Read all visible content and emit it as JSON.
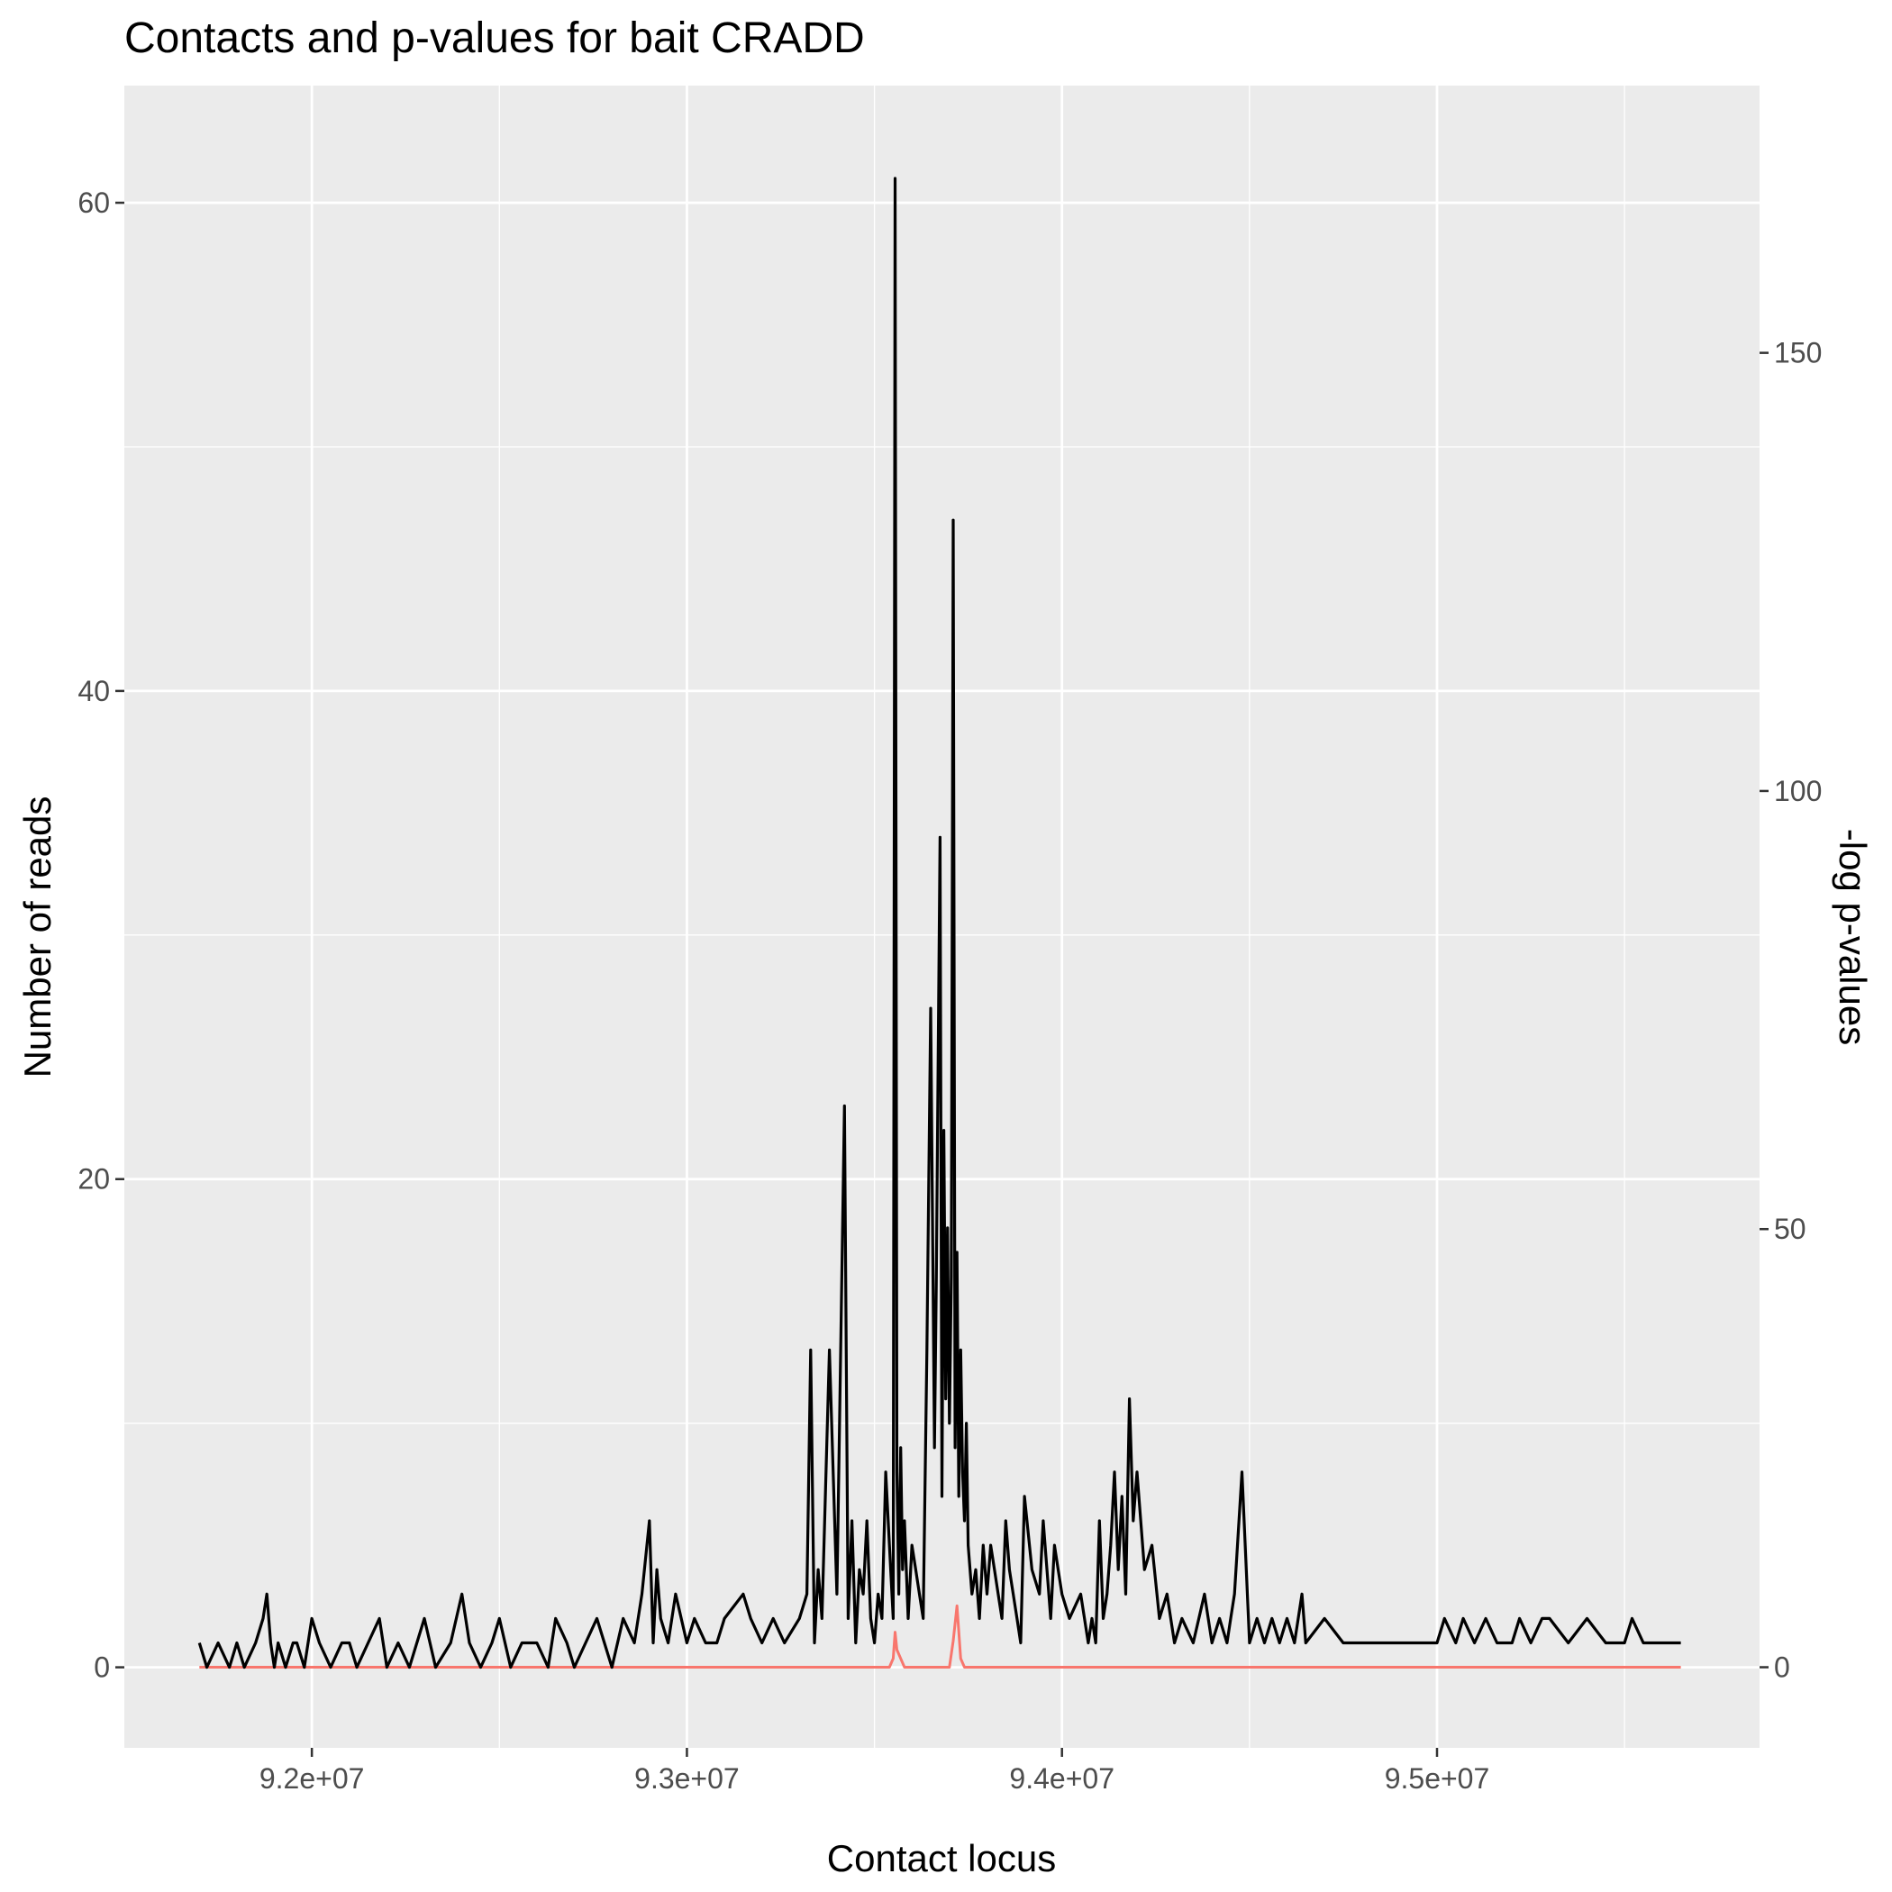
{
  "chart_data": {
    "type": "line",
    "title": "Contacts and p-values for bait CRADD",
    "xlabel": "Contact locus",
    "ylabel": "Number of reads",
    "y2label": "-log p-values",
    "xlim": [
      91500000,
      95860000
    ],
    "ylim": [
      -3.3,
      64.8
    ],
    "y2lim": [
      -9.2,
      180.5
    ],
    "x_ticks": [
      92000000,
      93000000,
      94000000,
      95000000
    ],
    "x_tick_labels": [
      "9.2e+07",
      "9.3e+07",
      "9.4e+07",
      "9.5e+07"
    ],
    "y_ticks": [
      0,
      20,
      40,
      60
    ],
    "y_tick_labels": [
      "0",
      "20",
      "40",
      "60"
    ],
    "y2_ticks": [
      0,
      50,
      100,
      150
    ],
    "y2_tick_labels": [
      "0",
      "50",
      "100",
      "150"
    ],
    "grid": true,
    "legend": "none",
    "colors": {
      "panel": "#ebebeb",
      "grid": "#ffffff",
      "reads": "#000000",
      "pvalues": "#f8766d"
    },
    "series": [
      {
        "axis": "left",
        "x": [
          91700000,
          91720000,
          91750000,
          91780000,
          91800000,
          91820000,
          91850000,
          91870000,
          91880000,
          91890000,
          91900000,
          91910000,
          91930000,
          91950000,
          91960000,
          91980000,
          92000000,
          92020000,
          92050000,
          92080000,
          92100000,
          92120000,
          92150000,
          92180000,
          92200000,
          92230000,
          92260000,
          92300000,
          92330000,
          92370000,
          92400000,
          92420000,
          92450000,
          92480000,
          92500000,
          92530000,
          92560000,
          92600000,
          92630000,
          92650000,
          92680000,
          92700000,
          92730000,
          92760000,
          92800000,
          92830000,
          92860000,
          92880000,
          92900000,
          92910000,
          92920000,
          92930000,
          92950000,
          92970000,
          93000000,
          93020000,
          93050000,
          93080000,
          93100000,
          93150000,
          93170000,
          93200000,
          93230000,
          93260000,
          93300000,
          93320000,
          93330000,
          93340000,
          93350000,
          93360000,
          93380000,
          93400000,
          93420000,
          93430000,
          93440000,
          93450000,
          93460000,
          93470000,
          93480000,
          93490000,
          93500000,
          93510000,
          93520000,
          93530000,
          93540000,
          93550000,
          93555000,
          93560000,
          93565000,
          93570000,
          93575000,
          93580000,
          93590000,
          93600000,
          93610000,
          93620000,
          93630000,
          93640000,
          93650000,
          93660000,
          93665000,
          93670000,
          93675000,
          93680000,
          93685000,
          93690000,
          93695000,
          93700000,
          93705000,
          93710000,
          93715000,
          93720000,
          93725000,
          93730000,
          93735000,
          93740000,
          93745000,
          93750000,
          93760000,
          93770000,
          93780000,
          93790000,
          93800000,
          93810000,
          93820000,
          93830000,
          93840000,
          93850000,
          93860000,
          93870000,
          93880000,
          93890000,
          93900000,
          93920000,
          93940000,
          93950000,
          93970000,
          93980000,
          93990000,
          94000000,
          94020000,
          94050000,
          94070000,
          94080000,
          94090000,
          94100000,
          94110000,
          94120000,
          94130000,
          94140000,
          94150000,
          94160000,
          94170000,
          94180000,
          94190000,
          94200000,
          94220000,
          94240000,
          94260000,
          94280000,
          94300000,
          94320000,
          94350000,
          94380000,
          94400000,
          94420000,
          94440000,
          94450000,
          94460000,
          94480000,
          94500000,
          94520000,
          94540000,
          94560000,
          94580000,
          94600000,
          94620000,
          94640000,
          94650000,
          94700000,
          94750000,
          94800000,
          94850000,
          94900000,
          94950000,
          94980000,
          95000000,
          95020000,
          95050000,
          95070000,
          95100000,
          95130000,
          95160000,
          95200000,
          95220000,
          95250000,
          95280000,
          95300000,
          95350000,
          95400000,
          95450000,
          95470000,
          95500000,
          95520000,
          95550000,
          95600000,
          95650000
        ],
        "y": [
          1,
          0,
          1,
          0,
          1,
          0,
          1,
          2,
          3,
          1,
          0,
          1,
          0,
          1,
          1,
          0,
          2,
          1,
          0,
          1,
          1,
          0,
          1,
          2,
          0,
          1,
          0,
          2,
          0,
          1,
          3,
          1,
          0,
          1,
          2,
          0,
          1,
          1,
          0,
          2,
          1,
          0,
          1,
          2,
          0,
          2,
          1,
          3,
          6,
          1,
          4,
          2,
          1,
          3,
          1,
          2,
          1,
          1,
          2,
          3,
          2,
          1,
          2,
          1,
          2,
          3,
          13,
          1,
          4,
          2,
          13,
          3,
          23,
          2,
          6,
          1,
          4,
          3,
          6,
          2,
          1,
          3,
          2,
          8,
          5,
          2,
          61,
          8,
          3,
          9,
          4,
          6,
          2,
          5,
          4,
          3,
          2,
          13,
          27,
          9,
          16,
          25,
          34,
          7,
          22,
          11,
          18,
          10,
          16,
          47,
          9,
          17,
          7,
          13,
          8,
          6,
          10,
          5,
          3,
          4,
          2,
          5,
          3,
          5,
          4,
          3,
          2,
          6,
          4,
          3,
          2,
          1,
          7,
          4,
          3,
          6,
          2,
          5,
          4,
          3,
          2,
          3,
          1,
          2,
          1,
          6,
          2,
          3,
          5,
          8,
          4,
          7,
          3,
          11,
          6,
          8,
          4,
          5,
          2,
          3,
          1,
          2,
          1,
          3,
          1,
          2,
          1,
          2,
          3,
          8,
          1,
          2,
          1,
          2,
          1,
          2,
          1,
          3,
          1,
          2,
          1,
          1,
          1,
          1,
          1,
          1,
          1,
          2,
          1,
          2,
          1,
          2,
          1,
          1,
          2,
          1,
          2,
          2,
          1,
          2,
          1,
          1,
          1,
          2,
          1,
          1,
          1
        ]
      },
      {
        "axis": "right",
        "x": [
          91700000,
          93540000,
          93550000,
          93555000,
          93560000,
          93570000,
          93580000,
          93600000,
          93700000,
          93710000,
          93720000,
          93730000,
          93740000,
          93750000,
          95650000
        ],
        "y": [
          0,
          0,
          1,
          4,
          2,
          1,
          0,
          0,
          0,
          3,
          7,
          1,
          0,
          0,
          0
        ]
      }
    ]
  }
}
